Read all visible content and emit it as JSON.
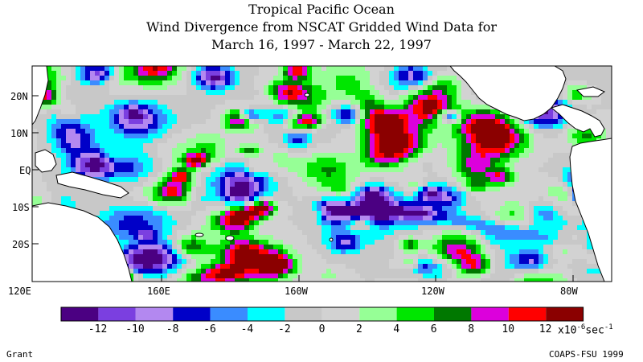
{
  "title_lines": [
    "Tropical Pacific Ocean",
    "Wind Divergence from NSCAT Gridded Wind Data for",
    "March 16, 1997 - March 22, 1997"
  ],
  "map": {
    "region": "Tropical Pacific Ocean",
    "lon_range": [
      "120E",
      "70W"
    ],
    "lat_range": [
      "30S",
      "28N"
    ],
    "lat_labels": [
      "20N",
      "10N",
      "EQ",
      "10S",
      "20S"
    ],
    "lon_labels": [
      "120E",
      "160E",
      "160W",
      "120W",
      "80W"
    ],
    "land_color": "#ffffff",
    "coastline_color": "#000000"
  },
  "colorbar": {
    "colors": [
      "#4b0082",
      "#7b3fe0",
      "#b388f0",
      "#0000c8",
      "#3a8cff",
      "#00ffff",
      "#c8c8c8",
      "#d2d2d2",
      "#96ff96",
      "#00e600",
      "#007800",
      "#dc00dc",
      "#ff0000",
      "#8b0000"
    ],
    "tick_labels": [
      "-12",
      "-10",
      "-8",
      "-6",
      "-4",
      "-2",
      "0",
      "2",
      "4",
      "6",
      "8",
      "10",
      "12"
    ],
    "unit_prefix": "x10",
    "unit_exponent": "-6",
    "unit_suffix": "sec",
    "unit_suffix_exponent": "-1"
  },
  "footer": {
    "left": "Grant",
    "right": "COAPS-FSU 1999"
  }
}
